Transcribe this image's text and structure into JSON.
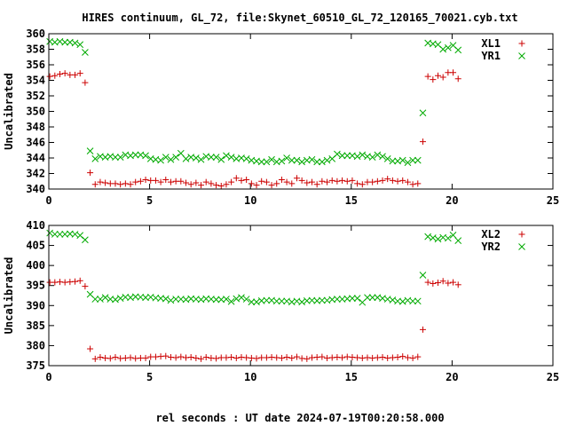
{
  "chart_data": {
    "type": "scatter",
    "title": "HIRES continuum, GL_72, file:Skynet_60510_GL_72_120165_70021.cyb.txt",
    "xlabel": "rel seconds : UT date 2024-07-19T00:20:58.000",
    "colors": {
      "XL": "#cc0000",
      "YR": "#00aa00"
    },
    "panels": [
      {
        "ylabel": "Uncalibrated",
        "xlim": [
          0,
          25
        ],
        "ylim": [
          340,
          360
        ],
        "xticks": [
          "0",
          "5",
          "10",
          "15",
          "20",
          "25"
        ],
        "yticks": [
          "340",
          "342",
          "344",
          "346",
          "348",
          "350",
          "352",
          "354",
          "356",
          "358",
          "360"
        ],
        "series": [
          {
            "name": "XL1",
            "marker": "plus",
            "color": "#cc0000",
            "x": [
              0.05,
              0.3,
              0.55,
              0.8,
              1.05,
              1.3,
              1.55,
              1.8,
              2.05,
              2.3,
              2.55,
              2.8,
              3.05,
              3.3,
              3.55,
              3.8,
              4.05,
              4.3,
              4.55,
              4.8,
              5.05,
              5.3,
              5.55,
              5.8,
              6.05,
              6.3,
              6.55,
              6.8,
              7.05,
              7.3,
              7.55,
              7.8,
              8.05,
              8.3,
              8.55,
              8.8,
              9.05,
              9.3,
              9.55,
              9.8,
              10.05,
              10.3,
              10.55,
              10.8,
              11.05,
              11.3,
              11.55,
              11.8,
              12.05,
              12.3,
              12.55,
              12.8,
              13.05,
              13.3,
              13.55,
              13.8,
              14.05,
              14.3,
              14.55,
              14.8,
              15.05,
              15.3,
              15.55,
              15.8,
              16.05,
              16.3,
              16.55,
              16.8,
              17.05,
              17.3,
              17.55,
              17.8,
              18.05,
              18.3,
              18.55,
              18.8,
              19.05,
              19.3,
              19.55,
              19.8,
              20.05,
              20.3
            ],
            "y": [
              354.5,
              354.6,
              354.8,
              354.9,
              354.7,
              354.7,
              354.9,
              353.7,
              342.1,
              340.6,
              340.9,
              340.8,
              340.7,
              340.7,
              340.6,
              340.7,
              340.6,
              340.9,
              341.0,
              341.2,
              341.1,
              341.1,
              340.9,
              341.2,
              340.9,
              341.0,
              341.0,
              340.8,
              340.6,
              340.8,
              340.5,
              340.9,
              340.7,
              340.5,
              340.4,
              340.6,
              340.9,
              341.4,
              341.1,
              341.2,
              340.7,
              340.5,
              341.0,
              340.9,
              340.5,
              340.7,
              341.2,
              340.9,
              340.7,
              341.4,
              341.1,
              340.8,
              340.9,
              340.6,
              341.0,
              340.9,
              341.1,
              341.0,
              341.1,
              341.0,
              341.1,
              340.7,
              340.6,
              340.9,
              340.9,
              341.0,
              341.1,
              341.3,
              341.1,
              341.0,
              341.1,
              340.9,
              340.6,
              340.7,
              346.1,
              354.5,
              354.1,
              354.6,
              354.4,
              355.0,
              355.0,
              354.2
            ]
          },
          {
            "name": "YR1",
            "marker": "cross",
            "color": "#00aa00",
            "x": [
              0.05,
              0.3,
              0.55,
              0.8,
              1.05,
              1.3,
              1.55,
              1.8,
              2.05,
              2.3,
              2.55,
              2.8,
              3.05,
              3.3,
              3.55,
              3.8,
              4.05,
              4.3,
              4.55,
              4.8,
              5.05,
              5.3,
              5.55,
              5.8,
              6.05,
              6.3,
              6.55,
              6.8,
              7.05,
              7.3,
              7.55,
              7.8,
              8.05,
              8.3,
              8.55,
              8.8,
              9.05,
              9.3,
              9.55,
              9.8,
              10.05,
              10.3,
              10.55,
              10.8,
              11.05,
              11.3,
              11.55,
              11.8,
              12.05,
              12.3,
              12.55,
              12.8,
              13.05,
              13.3,
              13.55,
              13.8,
              14.05,
              14.3,
              14.55,
              14.8,
              15.05,
              15.3,
              15.55,
              15.8,
              16.05,
              16.3,
              16.55,
              16.8,
              17.05,
              17.3,
              17.55,
              17.8,
              18.05,
              18.3,
              18.55,
              18.8,
              19.05,
              19.3,
              19.55,
              19.8,
              20.05,
              20.3
            ],
            "y": [
              359.0,
              358.9,
              359.0,
              358.9,
              358.9,
              358.8,
              358.6,
              357.6,
              344.9,
              343.9,
              344.2,
              344.1,
              344.2,
              344.1,
              344.1,
              344.4,
              344.3,
              344.4,
              344.4,
              344.3,
              343.9,
              343.8,
              343.7,
              344.1,
              343.8,
              344.1,
              344.6,
              343.9,
              344.1,
              344.0,
              343.8,
              344.2,
              344.1,
              344.1,
              343.8,
              344.3,
              344.1,
              343.9,
              344.0,
              343.9,
              343.7,
              343.6,
              343.5,
              343.5,
              343.8,
              343.5,
              343.6,
              344.0,
              343.7,
              343.7,
              343.5,
              343.7,
              343.8,
              343.5,
              343.5,
              343.7,
              343.9,
              344.5,
              344.3,
              344.3,
              344.3,
              344.2,
              344.4,
              344.2,
              344.1,
              344.4,
              344.2,
              343.9,
              343.6,
              343.6,
              343.7,
              343.4,
              343.7,
              343.7,
              349.8,
              358.8,
              358.7,
              358.6,
              358.0,
              358.2,
              358.5,
              357.9
            ]
          }
        ]
      },
      {
        "ylabel": "Uncalibrated",
        "xlim": [
          0,
          25
        ],
        "ylim": [
          375,
          410
        ],
        "xticks": [
          "0",
          "5",
          "10",
          "15",
          "20",
          "25"
        ],
        "yticks": [
          "375",
          "380",
          "385",
          "390",
          "395",
          "400",
          "405",
          "410"
        ],
        "series": [
          {
            "name": "XL2",
            "marker": "plus",
            "color": "#cc0000",
            "x": [
              0.05,
              0.3,
              0.55,
              0.8,
              1.05,
              1.3,
              1.55,
              1.8,
              2.05,
              2.3,
              2.55,
              2.8,
              3.05,
              3.3,
              3.55,
              3.8,
              4.05,
              4.3,
              4.55,
              4.8,
              5.05,
              5.3,
              5.55,
              5.8,
              6.05,
              6.3,
              6.55,
              6.8,
              7.05,
              7.3,
              7.55,
              7.8,
              8.05,
              8.3,
              8.55,
              8.8,
              9.05,
              9.3,
              9.55,
              9.8,
              10.05,
              10.3,
              10.55,
              10.8,
              11.05,
              11.3,
              11.55,
              11.8,
              12.05,
              12.3,
              12.55,
              12.8,
              13.05,
              13.3,
              13.55,
              13.8,
              14.05,
              14.3,
              14.55,
              14.8,
              15.05,
              15.3,
              15.55,
              15.8,
              16.05,
              16.3,
              16.55,
              16.8,
              17.05,
              17.3,
              17.55,
              17.8,
              18.05,
              18.3,
              18.55,
              18.8,
              19.05,
              19.3,
              19.55,
              19.8,
              20.05,
              20.3
            ],
            "y": [
              395.8,
              395.8,
              395.9,
              395.8,
              395.9,
              396.0,
              396.2,
              394.8,
              379.2,
              376.7,
              377.1,
              376.9,
              376.8,
              377.1,
              376.8,
              376.9,
              377.0,
              376.8,
              376.9,
              376.9,
              377.2,
              377.2,
              377.3,
              377.4,
              377.1,
              377.0,
              377.2,
              377.0,
              377.1,
              376.9,
              376.7,
              377.1,
              376.9,
              376.8,
              377.0,
              377.0,
              377.1,
              376.9,
              377.1,
              377.0,
              376.9,
              376.8,
              377.0,
              377.0,
              377.1,
              377.0,
              376.9,
              377.1,
              376.9,
              377.2,
              376.8,
              376.7,
              377.0,
              377.1,
              377.2,
              376.9,
              377.0,
              377.1,
              377.0,
              377.2,
              377.1,
              377.0,
              376.9,
              377.0,
              376.9,
              377.0,
              377.1,
              376.9,
              377.0,
              377.1,
              377.3,
              377.0,
              376.9,
              377.2,
              384.0,
              395.8,
              395.5,
              395.7,
              396.1,
              395.6,
              395.8,
              395.2
            ]
          },
          {
            "name": "YR2",
            "marker": "cross",
            "color": "#00aa00",
            "x": [
              0.05,
              0.3,
              0.55,
              0.8,
              1.05,
              1.3,
              1.55,
              1.8,
              2.05,
              2.3,
              2.55,
              2.8,
              3.05,
              3.3,
              3.55,
              3.8,
              4.05,
              4.3,
              4.55,
              4.8,
              5.05,
              5.3,
              5.55,
              5.8,
              6.05,
              6.3,
              6.55,
              6.8,
              7.05,
              7.3,
              7.55,
              7.8,
              8.05,
              8.3,
              8.55,
              8.8,
              9.05,
              9.3,
              9.55,
              9.8,
              10.05,
              10.3,
              10.55,
              10.8,
              11.05,
              11.3,
              11.55,
              11.8,
              12.05,
              12.3,
              12.55,
              12.8,
              13.05,
              13.3,
              13.55,
              13.8,
              14.05,
              14.3,
              14.55,
              14.8,
              15.05,
              15.3,
              15.55,
              15.8,
              16.05,
              16.3,
              16.55,
              16.8,
              17.05,
              17.3,
              17.55,
              17.8,
              18.05,
              18.3,
              18.55,
              18.8,
              19.05,
              19.3,
              19.55,
              19.8,
              20.05,
              20.3
            ],
            "y": [
              408.1,
              407.8,
              407.8,
              407.8,
              407.9,
              407.8,
              407.5,
              406.4,
              392.8,
              391.6,
              391.6,
              392.0,
              391.6,
              391.5,
              391.8,
              392.1,
              392.0,
              392.2,
              392.1,
              392.0,
              392.1,
              391.9,
              391.8,
              391.7,
              391.3,
              391.6,
              391.6,
              391.5,
              391.7,
              391.6,
              391.5,
              391.7,
              391.6,
              391.5,
              391.5,
              391.6,
              391.0,
              391.7,
              392.0,
              391.6,
              390.9,
              390.9,
              391.2,
              391.3,
              391.3,
              391.1,
              391.1,
              391.1,
              390.9,
              391.1,
              390.9,
              391.2,
              391.3,
              391.2,
              391.3,
              391.3,
              391.5,
              391.6,
              391.6,
              391.7,
              391.8,
              391.8,
              390.8,
              392.0,
              392.0,
              392.0,
              391.8,
              391.6,
              391.4,
              391.1,
              391.0,
              391.3,
              391.1,
              391.1,
              397.6,
              407.2,
              406.9,
              406.6,
              407.0,
              406.8,
              407.6,
              406.2
            ]
          }
        ]
      }
    ]
  }
}
